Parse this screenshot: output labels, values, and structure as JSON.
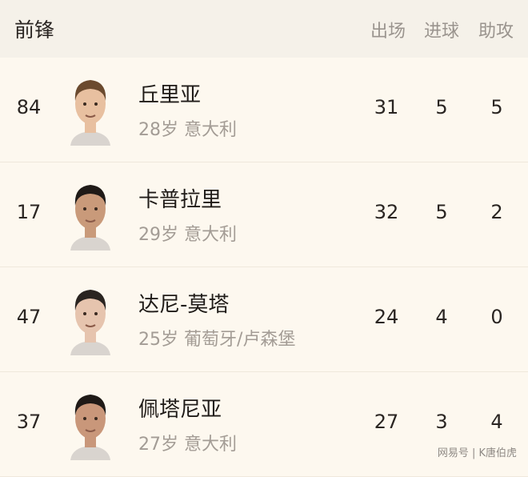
{
  "header": {
    "title": "前锋",
    "columns": [
      "出场",
      "进球",
      "助攻"
    ]
  },
  "players": [
    {
      "number": "84",
      "name": "丘里亚",
      "age": "28岁",
      "nationality": "意大利",
      "apps": "31",
      "goals": "5",
      "assists": "5",
      "hair": "#6b4a2e",
      "skin": "#e8c0a0"
    },
    {
      "number": "17",
      "name": "卡普拉里",
      "age": "29岁",
      "nationality": "意大利",
      "apps": "32",
      "goals": "5",
      "assists": "2",
      "hair": "#1f1a17",
      "skin": "#c99a7a"
    },
    {
      "number": "47",
      "name": "达尼-莫塔",
      "age": "25岁",
      "nationality": "葡萄牙/卢森堡",
      "apps": "24",
      "goals": "4",
      "assists": "0",
      "hair": "#2a2420",
      "skin": "#e6c4ae"
    },
    {
      "number": "37",
      "name": "佩塔尼亚",
      "age": "27岁",
      "nationality": "意大利",
      "apps": "27",
      "goals": "3",
      "assists": "4",
      "hair": "#1f1a17",
      "skin": "#c9977a"
    }
  ],
  "watermark": "网易号 | K唐伯虎"
}
